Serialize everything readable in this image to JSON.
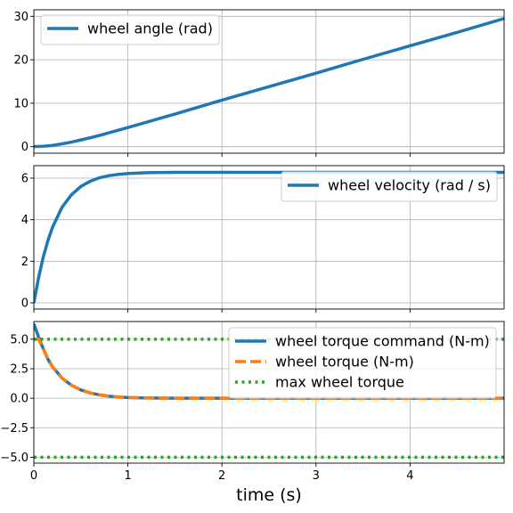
{
  "chart_data": [
    {
      "type": "line",
      "xlim": [
        0,
        5
      ],
      "ylim": [
        -1.5,
        31.5
      ],
      "xticks": [
        0,
        1,
        2,
        3,
        4
      ],
      "yticks": [
        0,
        10,
        20,
        30
      ],
      "ytick_labels": [
        "0",
        "10",
        "20",
        "30"
      ],
      "grid": true,
      "legend_position": "upper-left",
      "series": [
        {
          "name": "wheel angle (rad)",
          "color": "#1f77b4",
          "style": "solid",
          "x": [
            0,
            0.1,
            0.2,
            0.3,
            0.4,
            0.5,
            0.6,
            0.7,
            0.8,
            1.0,
            1.5,
            2.0,
            2.5,
            3.0,
            3.5,
            4.0,
            4.5,
            5.0
          ],
          "y": [
            0,
            0.1,
            0.3,
            0.65,
            1.05,
            1.55,
            2.05,
            2.6,
            3.2,
            4.4,
            7.5,
            10.7,
            13.8,
            16.9,
            20.1,
            23.2,
            26.3,
            29.5
          ]
        }
      ]
    },
    {
      "type": "line",
      "xlim": [
        0,
        5
      ],
      "ylim": [
        -0.3,
        6.6
      ],
      "xticks": [
        0,
        1,
        2,
        3,
        4
      ],
      "yticks": [
        0,
        2,
        4,
        6
      ],
      "ytick_labels": [
        "0",
        "2",
        "4",
        "6"
      ],
      "grid": true,
      "legend_position": "upper-right",
      "series": [
        {
          "name": "wheel velocity (rad / s)",
          "color": "#1f77b4",
          "style": "solid",
          "x": [
            0,
            0.05,
            0.1,
            0.15,
            0.2,
            0.3,
            0.4,
            0.5,
            0.6,
            0.7,
            0.8,
            0.9,
            1.0,
            1.2,
            1.5,
            2.0,
            3.0,
            4.0,
            5.0
          ],
          "y": [
            0,
            1.2,
            2.2,
            3.0,
            3.65,
            4.6,
            5.2,
            5.6,
            5.85,
            6.02,
            6.12,
            6.18,
            6.22,
            6.26,
            6.28,
            6.28,
            6.28,
            6.28,
            6.28
          ]
        }
      ]
    },
    {
      "type": "line",
      "xlim": [
        0,
        5
      ],
      "ylim": [
        -5.5,
        6.5
      ],
      "xticks": [
        0,
        1,
        2,
        3,
        4
      ],
      "xtick_labels": [
        "0",
        "1",
        "2",
        "3",
        "4"
      ],
      "yticks": [
        -5.0,
        -2.5,
        0.0,
        2.5,
        5.0
      ],
      "ytick_labels": [
        "−5.0",
        "−2.5",
        "0.0",
        "2.5",
        "5.0"
      ],
      "xlabel": "time (s)",
      "grid": true,
      "legend_position": "upper-right",
      "series": [
        {
          "name": "wheel torque command (N-m)",
          "color": "#1f77b4",
          "style": "solid",
          "x": [
            0,
            0.05,
            0.1,
            0.15,
            0.2,
            0.3,
            0.4,
            0.5,
            0.6,
            0.7,
            0.8,
            0.9,
            1.0,
            1.2,
            1.5,
            2.0,
            3.0,
            4.0,
            5.0
          ],
          "y": [
            6.3,
            5.2,
            4.2,
            3.3,
            2.65,
            1.7,
            1.1,
            0.7,
            0.45,
            0.28,
            0.17,
            0.1,
            0.06,
            0.02,
            0.0,
            0.0,
            0.0,
            0.0,
            0.0
          ]
        },
        {
          "name": "wheel torque (N-m)",
          "color": "#ff7f0e",
          "style": "dashed",
          "x": [
            0,
            0.05,
            0.1,
            0.15,
            0.2,
            0.3,
            0.4,
            0.5,
            0.6,
            0.7,
            0.8,
            0.9,
            1.0,
            1.2,
            1.5,
            2.0,
            3.0,
            4.0,
            5.0
          ],
          "y": [
            5.0,
            5.0,
            4.2,
            3.3,
            2.65,
            1.7,
            1.1,
            0.7,
            0.45,
            0.28,
            0.17,
            0.1,
            0.06,
            0.02,
            0.0,
            0.0,
            0.0,
            0.0,
            0.0
          ]
        },
        {
          "name": "max wheel torque",
          "color": "#2ca02c",
          "style": "dotted",
          "x": [
            0,
            5
          ],
          "y": [
            5.0,
            5.0
          ]
        },
        {
          "name": "",
          "color": "#2ca02c",
          "style": "dotted",
          "x": [
            0,
            5
          ],
          "y": [
            -5.0,
            -5.0
          ]
        }
      ]
    }
  ]
}
